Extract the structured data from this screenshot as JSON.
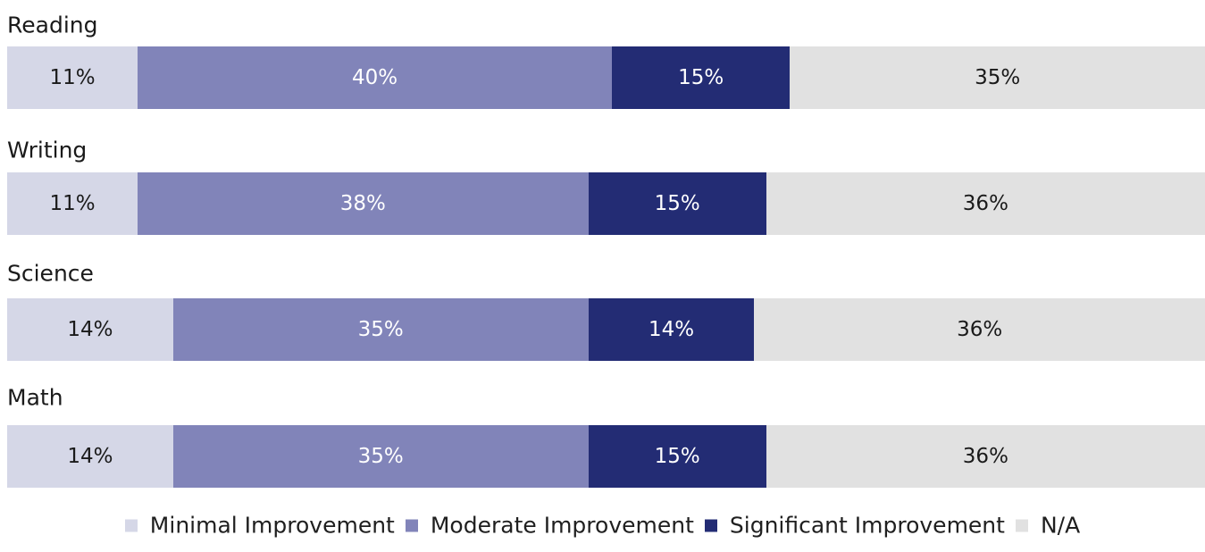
{
  "chart_data": {
    "type": "bar",
    "orientation": "horizontal",
    "stacked": true,
    "categories": [
      "Reading",
      "Writing",
      "Science",
      "Math"
    ],
    "series": [
      {
        "name": "Minimal Improvement",
        "color": "#d5d7e7",
        "label_color": "#1a1a1a",
        "values": [
          11,
          11,
          14,
          14
        ],
        "labels": [
          "11%",
          "11%",
          "14%",
          "14%"
        ]
      },
      {
        "name": "Moderate Improvement",
        "color": "#8184b9",
        "label_color": "#ffffff",
        "values": [
          40,
          38,
          35,
          35
        ],
        "labels": [
          "40%",
          "38%",
          "35%",
          "35%"
        ]
      },
      {
        "name": "Significant Improvement",
        "color": "#232c74",
        "label_color": "#ffffff",
        "values": [
          15,
          15,
          14,
          15
        ],
        "labels": [
          "15%",
          "15%",
          "14%",
          "15%"
        ]
      },
      {
        "name": "N/A",
        "color": "#e1e1e1",
        "label_color": "#1a1a1a",
        "values": [
          35,
          36,
          36,
          36
        ],
        "labels": [
          "35%",
          "36%",
          "36%",
          "36%"
        ]
      }
    ],
    "xlim": [
      0,
      101
    ],
    "grid": false,
    "legend_position": "bottom"
  }
}
